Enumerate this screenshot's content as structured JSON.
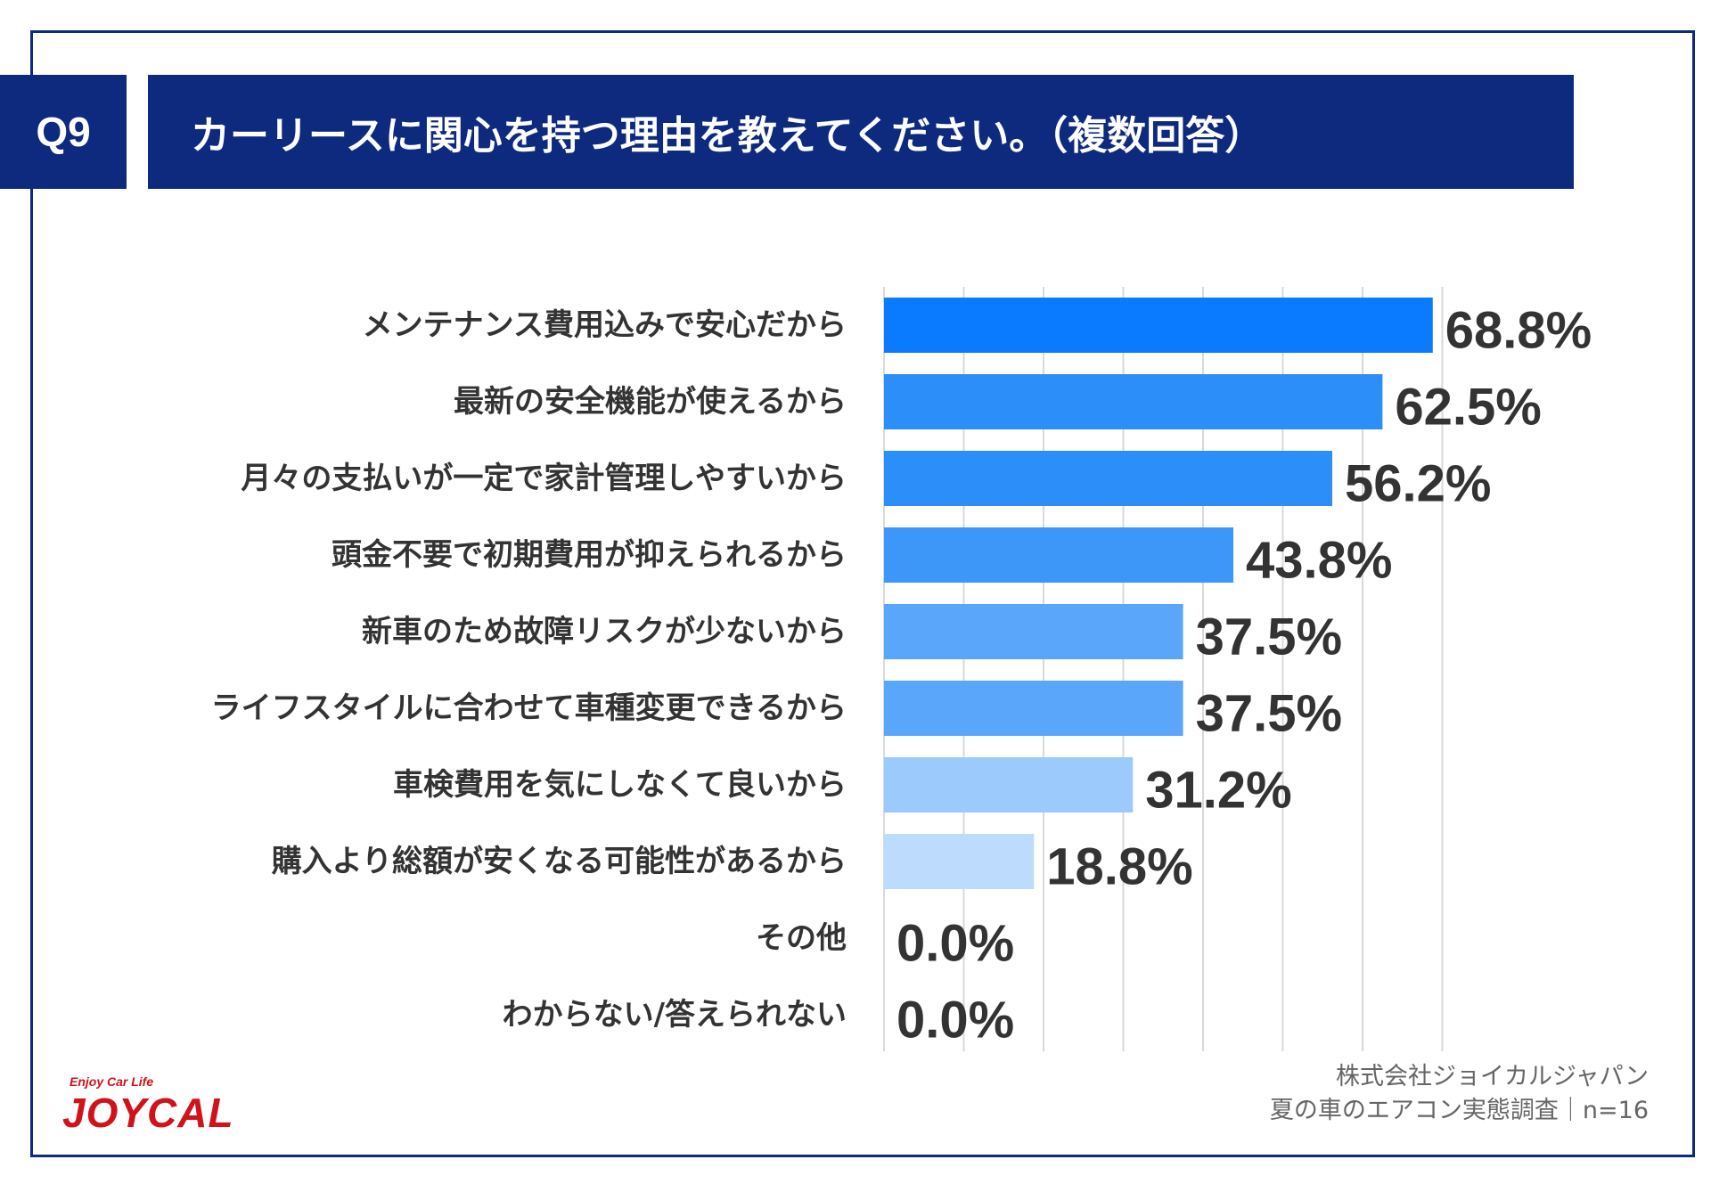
{
  "header": {
    "badge": "Q9",
    "title": "カーリースに関心を持つ理由を教えてください。（複数回答）"
  },
  "chart_data": {
    "type": "bar",
    "orientation": "horizontal",
    "categories": [
      "メンテナンス費用込みで安心だから",
      "最新の安全機能が使えるから",
      "月々の支払いが一定で家計管理しやすいから",
      "頭金不要で初期費用が抑えられるから",
      "新車のため故障リスクが少ないから",
      "ライフスタイルに合わせて車種変更できるから",
      "車検費用を気にしなくて良いから",
      "購入より総額が安くなる可能性があるから",
      "その他",
      "わからない/答えられない"
    ],
    "values": [
      68.8,
      62.5,
      56.2,
      43.8,
      37.5,
      37.5,
      31.2,
      18.8,
      0.0,
      0.0
    ],
    "value_labels": [
      "68.8%",
      "62.5%",
      "56.2%",
      "43.8%",
      "37.5%",
      "37.5%",
      "31.2%",
      "18.8%",
      "0.0%",
      "0.0%"
    ],
    "bar_colors": [
      "#0a7bff",
      "#2c8ef8",
      "#2c8ef8",
      "#3d97f9",
      "#5aa6fa",
      "#5aa6fa",
      "#9ccafc",
      "#bddbfd",
      "#bddbfd",
      "#bddbfd"
    ],
    "xlim": [
      0,
      70
    ],
    "grid": true,
    "grid_step": 10
  },
  "footer": {
    "company": "株式会社ジョイカルジャパン",
    "survey": "夏の車のエアコン実態調査｜n=16"
  },
  "logo": {
    "tagline": "Enjoy Car Life",
    "wordmark": "JOYCAL"
  }
}
